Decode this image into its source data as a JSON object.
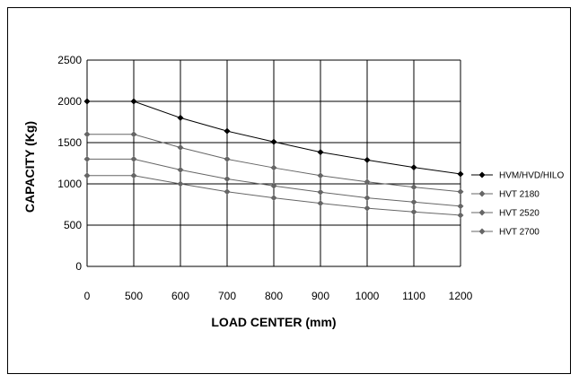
{
  "chart_data": {
    "type": "line",
    "title": "",
    "xlabel": "LOAD CENTER (mm)",
    "ylabel": "CAPACITY (Kg)",
    "categories": [
      "0",
      "500",
      "600",
      "700",
      "800",
      "900",
      "1000",
      "1100",
      "1200"
    ],
    "ylim": [
      0,
      2500
    ],
    "yticks": [
      "0",
      "500",
      "1000",
      "1500",
      "2000",
      "2500"
    ],
    "grid": "horizontal and vertical",
    "legend_position": "right",
    "series": [
      {
        "name": "HVM/HVD/HILO",
        "color": "#000000",
        "values": [
          2000,
          2000,
          1800,
          1640,
          1510,
          1385,
          1290,
          1200,
          1120
        ]
      },
      {
        "name": "HVT 2180",
        "color": "#666666",
        "values": [
          1600,
          1600,
          1440,
          1300,
          1195,
          1100,
          1025,
          960,
          905
        ]
      },
      {
        "name": "HVT 2520",
        "color": "#666666",
        "values": [
          1300,
          1300,
          1170,
          1060,
          975,
          900,
          830,
          780,
          730
        ]
      },
      {
        "name": "HVT 2700",
        "color": "#666666",
        "values": [
          1100,
          1100,
          1000,
          905,
          830,
          765,
          705,
          660,
          620
        ]
      }
    ]
  }
}
